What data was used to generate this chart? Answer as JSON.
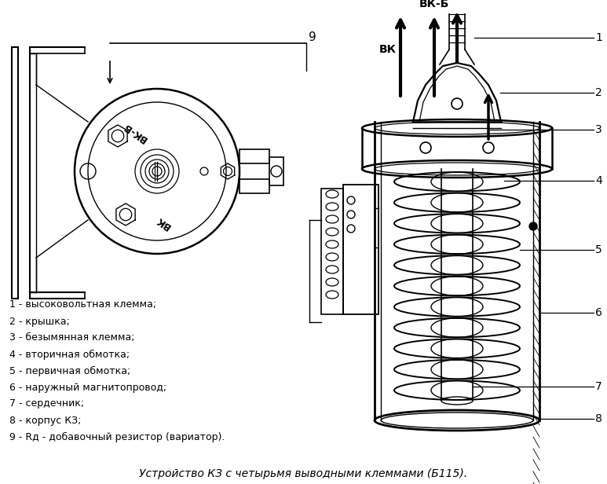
{
  "title": "Устройство КЗ с четырьмя выводными клеммами (Б115).",
  "bg_color": "#ffffff",
  "legend_lines": [
    "1 - высоковольтная клемма;",
    "2 - крышка;",
    "3 - безымянная клемма;",
    "4 - вторичная обмотка;",
    "5 - первичная обмотка;",
    "6 - наружный магнитопровод;",
    "7 - сердечник;",
    "8 - корпус КЗ;",
    "9 - Rд - добавочный резистор (вариатор)."
  ]
}
